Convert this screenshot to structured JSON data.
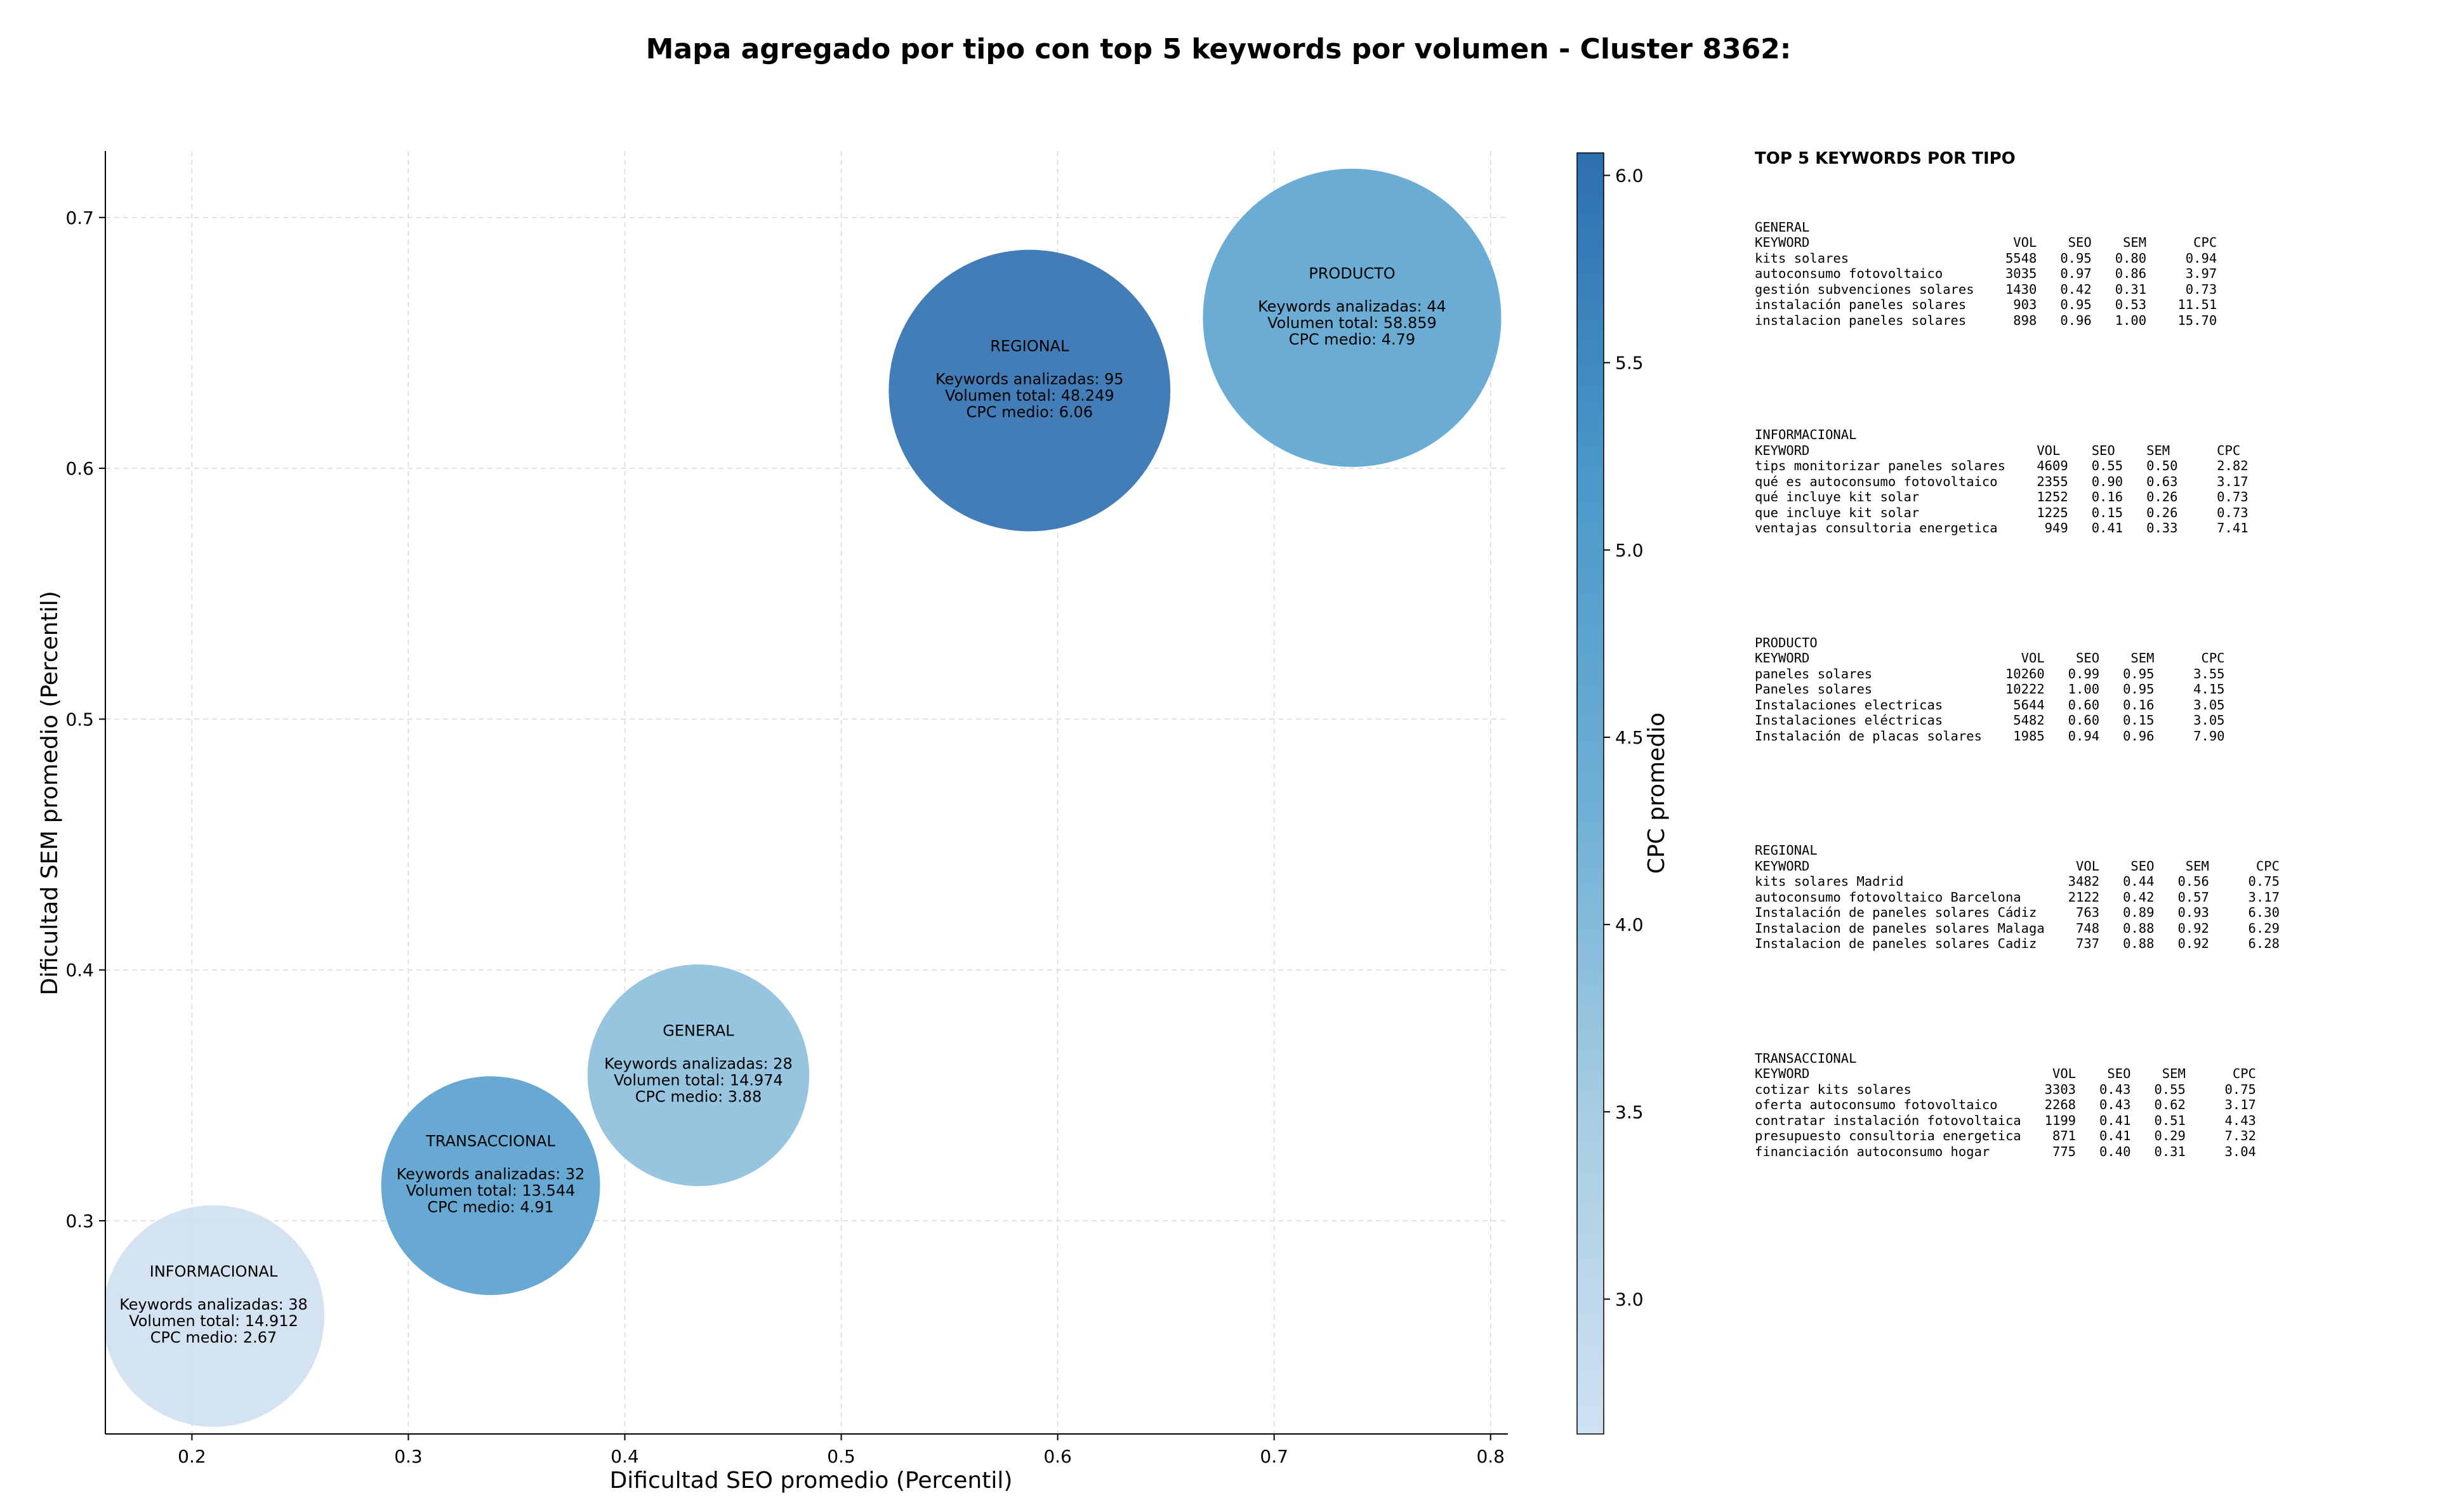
{
  "chart_data": {
    "type": "scatter",
    "title": "Mapa agregado por tipo con top 5 keywords por volumen - Cluster 8362:",
    "xlabel": "Dificultad SEO promedio (Percentil)",
    "ylabel": "Dificultad SEM promedio (Percentil)",
    "xlim": [
      0.16,
      0.808
    ],
    "ylim": [
      0.215,
      0.7265
    ],
    "xticks": [
      "0.2",
      "0.3",
      "0.4",
      "0.5",
      "0.6",
      "0.7",
      "0.8"
    ],
    "yticks": [
      "0.3",
      "0.4",
      "0.5",
      "0.6",
      "0.7"
    ],
    "grid": true,
    "colorbar": {
      "label": "CPC promedio",
      "range": [
        2.64,
        6.06
      ],
      "ticks": [
        "3.0",
        "3.5",
        "4.0",
        "4.5",
        "5.0",
        "5.5",
        "6.0"
      ],
      "colormap": "Blues"
    },
    "points": [
      {
        "name": "INFORMACIONAL",
        "x": 0.21,
        "y": 0.262,
        "keywords_line": "Keywords analizadas: 38",
        "volume_line": "Volumen total: 14.912",
        "cpc_line": "CPC medio: 2.67",
        "cpc": 2.67,
        "volume": 14912
      },
      {
        "name": "TRANSACCIONAL",
        "x": 0.338,
        "y": 0.314,
        "keywords_line": "Keywords analizadas: 32",
        "volume_line": "Volumen total: 13.544",
        "cpc_line": "CPC medio: 4.91",
        "cpc": 4.91,
        "volume": 13544
      },
      {
        "name": "GENERAL",
        "x": 0.434,
        "y": 0.358,
        "keywords_line": "Keywords analizadas: 28",
        "volume_line": "Volumen total: 14.974",
        "cpc_line": "CPC medio: 3.88",
        "cpc": 3.88,
        "volume": 14974
      },
      {
        "name": "REGIONAL",
        "x": 0.587,
        "y": 0.631,
        "keywords_line": "Keywords analizadas: 95",
        "volume_line": "Volumen total: 48.249",
        "cpc_line": "CPC medio: 6.06",
        "cpc": 6.06,
        "volume": 48249
      },
      {
        "name": "PRODUCTO",
        "x": 0.736,
        "y": 0.66,
        "keywords_line": "Keywords analizadas: 44",
        "volume_line": "Volumen total: 58.859",
        "cpc_line": "CPC medio: 4.79",
        "cpc": 4.79,
        "volume": 58859
      }
    ]
  },
  "panel": {
    "title": "TOP 5 KEYWORDS POR TIPO",
    "groups": [
      {
        "name": "GENERAL",
        "rows": [
          "KEYWORD                          VOL    SEO    SEM      CPC",
          "kits solares                    5548   0.95   0.80     0.94",
          "autoconsumo fotovoltaico        3035   0.97   0.86     3.97",
          "gestión subvenciones solares    1430   0.42   0.31     0.73",
          "instalación paneles solares      903   0.95   0.53    11.51",
          "instalacion paneles solares      898   0.96   1.00    15.70"
        ]
      },
      {
        "name": "INFORMACIONAL",
        "rows": [
          "KEYWORD                             VOL    SEO    SEM      CPC",
          "tips monitorizar paneles solares    4609   0.55   0.50     2.82",
          "qué es autoconsumo fotovoltaico     2355   0.90   0.63     3.17",
          "qué incluye kit solar               1252   0.16   0.26     0.73",
          "que incluye kit solar               1225   0.15   0.26     0.73",
          "ventajas consultoria energetica      949   0.41   0.33     7.41"
        ]
      },
      {
        "name": "PRODUCTO",
        "rows": [
          "KEYWORD                           VOL    SEO    SEM      CPC",
          "paneles solares                 10260   0.99   0.95     3.55",
          "Paneles solares                 10222   1.00   0.95     4.15",
          "Instalaciones electricas         5644   0.60   0.16     3.05",
          "Instalaciones eléctricas         5482   0.60   0.15     3.05",
          "Instalación de placas solares    1985   0.94   0.96     7.90"
        ]
      },
      {
        "name": "REGIONAL",
        "rows": [
          "KEYWORD                                  VOL    SEO    SEM      CPC",
          "kits solares Madrid                     3482   0.44   0.56     0.75",
          "autoconsumo fotovoltaico Barcelona      2122   0.42   0.57     3.17",
          "Instalación de paneles solares Cádiz     763   0.89   0.93     6.30",
          "Instalacion de paneles solares Malaga    748   0.88   0.92     6.29",
          "Instalacion de paneles solares Cadiz     737   0.88   0.92     6.28"
        ]
      },
      {
        "name": "TRANSACCIONAL",
        "rows": [
          "KEYWORD                               VOL    SEO    SEM      CPC",
          "cotizar kits solares                 3303   0.43   0.55     0.75",
          "oferta autoconsumo fotovoltaico      2268   0.43   0.62     3.17",
          "contratar instalación fotovoltaica   1199   0.41   0.51     4.43",
          "presupuesto consultoria energetica    871   0.41   0.29     7.32",
          "financiación autoconsumo hogar        775   0.40   0.31     3.04"
        ]
      }
    ]
  }
}
